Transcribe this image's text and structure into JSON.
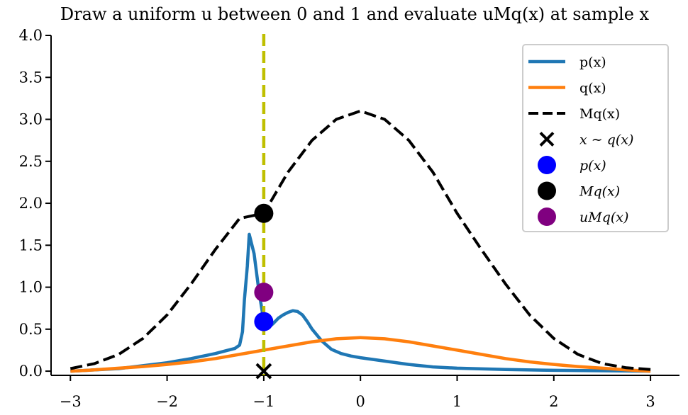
{
  "chart_data": {
    "type": "line",
    "title": "Draw a uniform u between 0 and 1 and evaluate uMq(x) at sample x",
    "xlabel": "",
    "ylabel": "",
    "xlim": [
      -3.2,
      3.3
    ],
    "ylim": [
      -0.05,
      4.0
    ],
    "xticks": [
      -3,
      -2,
      -1,
      0,
      1,
      2,
      3
    ],
    "xtick_labels": [
      "−3",
      "−2",
      "−1",
      "0",
      "1",
      "2",
      "3"
    ],
    "yticks": [
      0.0,
      0.5,
      1.0,
      1.5,
      2.0,
      2.5,
      3.0,
      3.5,
      4.0
    ],
    "ytick_labels": [
      "0.0",
      "0.5",
      "1.0",
      "1.5",
      "2.0",
      "2.5",
      "3.0",
      "3.5",
      "4.0"
    ],
    "grid": false,
    "legend_position": "top-right",
    "series": [
      {
        "name": "p(x)",
        "kind": "line",
        "color": "#1f77b4",
        "x": [
          -3.0,
          -2.5,
          -2.0,
          -1.75,
          -1.5,
          -1.4,
          -1.3,
          -1.25,
          -1.22,
          -1.2,
          -1.17,
          -1.15,
          -1.1,
          -1.05,
          -1.0,
          -0.95,
          -0.9,
          -0.85,
          -0.8,
          -0.75,
          -0.7,
          -0.65,
          -0.6,
          -0.55,
          -0.5,
          -0.4,
          -0.3,
          -0.2,
          -0.1,
          0.0,
          0.25,
          0.5,
          0.75,
          1.0,
          1.5,
          2.0,
          2.5,
          3.0
        ],
        "y": [
          0.0,
          0.03,
          0.1,
          0.15,
          0.21,
          0.24,
          0.27,
          0.31,
          0.47,
          0.85,
          1.25,
          1.63,
          1.4,
          0.95,
          0.6,
          0.52,
          0.57,
          0.63,
          0.67,
          0.7,
          0.72,
          0.71,
          0.67,
          0.59,
          0.5,
          0.36,
          0.26,
          0.21,
          0.18,
          0.16,
          0.12,
          0.08,
          0.05,
          0.035,
          0.02,
          0.01,
          0.005,
          0.0
        ]
      },
      {
        "name": "q(x)",
        "kind": "line",
        "color": "#ff7f0e",
        "x": [
          -3.0,
          -2.75,
          -2.5,
          -2.25,
          -2.0,
          -1.75,
          -1.5,
          -1.25,
          -1.0,
          -0.75,
          -0.5,
          -0.25,
          0.0,
          0.25,
          0.5,
          0.75,
          1.0,
          1.25,
          1.5,
          1.75,
          2.0,
          2.25,
          2.5,
          2.75,
          3.0
        ],
        "y": [
          0.0,
          0.015,
          0.035,
          0.055,
          0.08,
          0.11,
          0.15,
          0.2,
          0.25,
          0.3,
          0.35,
          0.385,
          0.4,
          0.385,
          0.35,
          0.3,
          0.25,
          0.2,
          0.15,
          0.11,
          0.08,
          0.055,
          0.035,
          0.015,
          0.0
        ]
      },
      {
        "name": "Mq(x)",
        "kind": "dashed-line",
        "color": "#000000",
        "x": [
          -3.0,
          -2.75,
          -2.5,
          -2.25,
          -2.0,
          -1.75,
          -1.5,
          -1.25,
          -1.0,
          -0.75,
          -0.5,
          -0.25,
          0.0,
          0.25,
          0.5,
          0.75,
          1.0,
          1.25,
          1.5,
          1.75,
          2.0,
          2.25,
          2.5,
          2.75,
          3.0
        ],
        "y": [
          0.03,
          0.09,
          0.2,
          0.39,
          0.67,
          1.04,
          1.45,
          1.82,
          1.88,
          2.37,
          2.75,
          3.0,
          3.1,
          3.0,
          2.75,
          2.37,
          1.88,
          1.45,
          1.04,
          0.67,
          0.39,
          0.2,
          0.09,
          0.04,
          0.02
        ]
      }
    ],
    "vertical_line": {
      "x": -1.0,
      "color": "#bfbf00",
      "style": "dashed"
    },
    "markers": [
      {
        "name": "x ~ q(x)",
        "symbol": "x",
        "color": "#000000",
        "x": -1.0,
        "y": 0.0
      },
      {
        "name": "p(x)",
        "symbol": "circle",
        "color": "#0000ff",
        "x": -1.0,
        "y": 0.59
      },
      {
        "name": "Mq(x)",
        "symbol": "circle",
        "color": "#000000",
        "x": -1.0,
        "y": 1.88
      },
      {
        "name": "uMq(x)",
        "symbol": "circle",
        "color": "#800080",
        "x": -1.0,
        "y": 0.94
      }
    ],
    "legend": [
      {
        "label": "p(x)",
        "kind": "line",
        "color": "#1f77b4",
        "math": false
      },
      {
        "label": "q(x)",
        "kind": "line",
        "color": "#ff7f0e",
        "math": false
      },
      {
        "label": "Mq(x)",
        "kind": "dashed-line",
        "color": "#000000",
        "math": false
      },
      {
        "label": "x ∼ q(x)",
        "kind": "x-marker",
        "color": "#000000",
        "math": true
      },
      {
        "label": "p(x)",
        "kind": "circle",
        "color": "#0000ff",
        "math": true
      },
      {
        "label": "Mq(x)",
        "kind": "circle",
        "color": "#000000",
        "math": true
      },
      {
        "label": "uMq(x)",
        "kind": "circle",
        "color": "#800080",
        "math": true
      }
    ]
  }
}
